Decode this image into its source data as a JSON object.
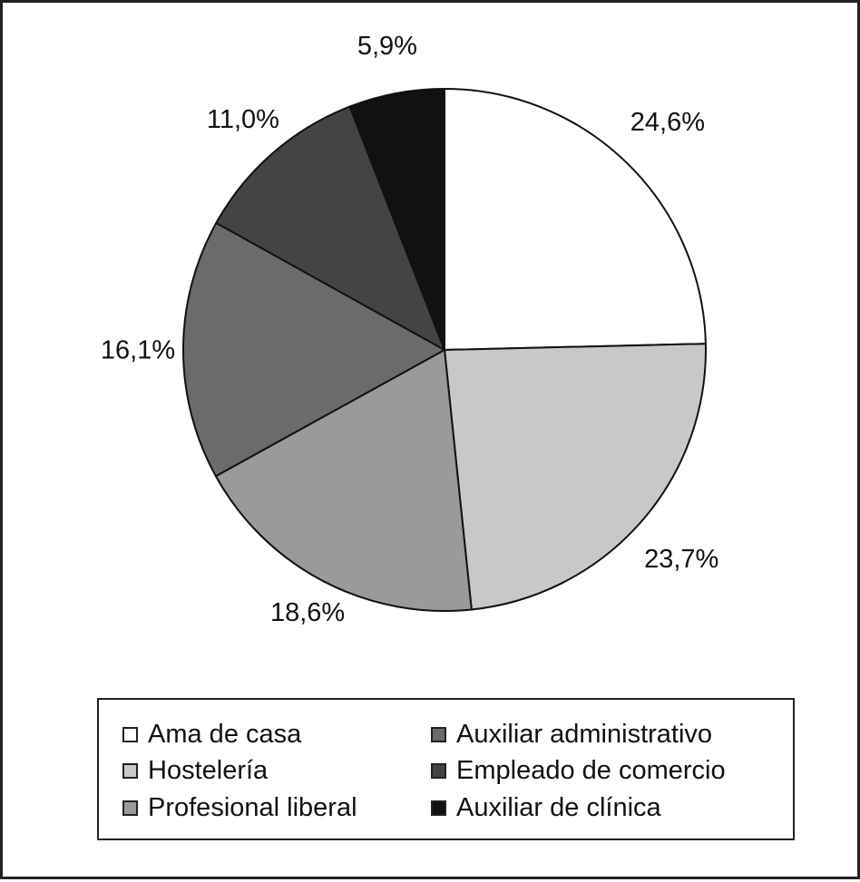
{
  "chart_data": {
    "type": "pie",
    "categories": [
      "Ama de casa",
      "Hostelería",
      "Profesional liberal",
      "Auxiliar administrativo",
      "Empleado de comercio",
      "Auxiliar de clínica"
    ],
    "values": [
      24.6,
      23.7,
      18.6,
      16.1,
      11.0,
      5.9
    ],
    "labels": [
      "24,6%",
      "23,7%",
      "18,6%",
      "16,1%",
      "11,0%",
      "5,9%"
    ],
    "colors": [
      "#ffffff",
      "#c8c8c8",
      "#9a9a9a",
      "#6b6b6b",
      "#444444",
      "#111111"
    ],
    "legend_position": "bottom",
    "start_angle": "top",
    "direction": "clockwise"
  },
  "legend": {
    "items": [
      {
        "label": "Ama de casa",
        "color": "#ffffff"
      },
      {
        "label": "Hostelería",
        "color": "#c8c8c8"
      },
      {
        "label": "Profesional liberal",
        "color": "#9a9a9a"
      },
      {
        "label": "Auxiliar administrativo",
        "color": "#6b6b6b"
      },
      {
        "label": "Empleado de comercio",
        "color": "#444444"
      },
      {
        "label": "Auxiliar de clínica",
        "color": "#111111"
      }
    ]
  }
}
